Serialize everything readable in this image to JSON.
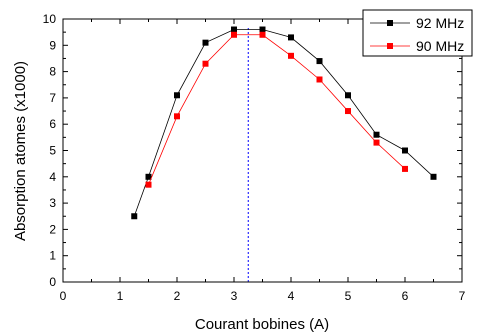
{
  "chart_data": {
    "type": "line",
    "title": "",
    "xlabel": "Courant bobines (A)",
    "ylabel": "Absorption atomes (x1000)",
    "xlim": [
      0,
      7
    ],
    "ylim": [
      0,
      10
    ],
    "xticks": [
      "0",
      "1",
      "2",
      "3",
      "4",
      "5",
      "6",
      "7"
    ],
    "yticks": [
      "0",
      "1",
      "2",
      "3",
      "4",
      "5",
      "6",
      "7",
      "8",
      "9",
      "10"
    ],
    "grid": false,
    "legend_position": "top-right",
    "vertical_line_x": 3.25,
    "series": [
      {
        "name": "92 MHz",
        "color": "#000000",
        "marker": "square",
        "x": [
          1.25,
          1.5,
          2.0,
          2.5,
          3.0,
          3.5,
          4.0,
          4.5,
          5.0,
          5.5,
          6.0,
          6.5
        ],
        "y": [
          2.5,
          4.0,
          7.1,
          9.1,
          9.6,
          9.6,
          9.3,
          8.4,
          7.1,
          5.6,
          5.0,
          4.0
        ]
      },
      {
        "name": "90 MHz",
        "color": "#ff0000",
        "marker": "square",
        "x": [
          1.5,
          2.0,
          2.5,
          3.0,
          3.5,
          4.0,
          4.5,
          5.0,
          5.5,
          6.0
        ],
        "y": [
          3.7,
          6.3,
          8.3,
          9.4,
          9.4,
          8.6,
          7.7,
          6.5,
          5.3,
          4.3
        ]
      }
    ],
    "vline_color": "#0000ff"
  }
}
